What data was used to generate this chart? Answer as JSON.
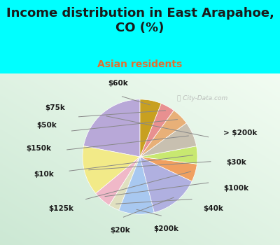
{
  "title": "Income distribution in East Arapahoe,\nCO (%)",
  "subtitle": "Asian residents",
  "watermark": "City-Data.com",
  "labels": [
    "> $200k",
    "$30k",
    "$100k",
    "$40k",
    "$200k",
    "$20k",
    "$125k",
    "$10k",
    "$150k",
    "$50k",
    "$75k",
    "$60k"
  ],
  "values": [
    22,
    14,
    5,
    3,
    10,
    14,
    5,
    5,
    7,
    5,
    4,
    6
  ],
  "colors": [
    "#b8a8d8",
    "#f2ea88",
    "#f0b8c8",
    "#e0e0c0",
    "#a8c8f0",
    "#b0b0e0",
    "#f0a060",
    "#c8e870",
    "#c8c0b0",
    "#e8b078",
    "#e89090",
    "#c8a020"
  ],
  "bg_top": "#00ffff",
  "bg_chart_gradient": true,
  "title_color": "#1a1a1a",
  "subtitle_color": "#e07030",
  "label_fontsize": 7.5,
  "title_fontsize": 13,
  "subtitle_fontsize": 10
}
